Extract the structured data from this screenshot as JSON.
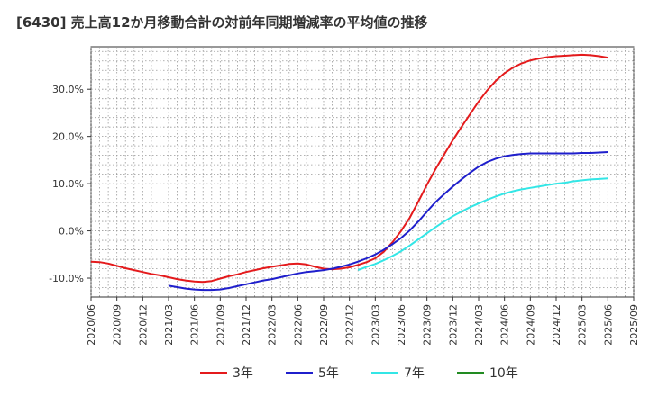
{
  "chart_data": {
    "type": "line",
    "title": "[6430]  売上高12か月移動合計の対前年同期増減率の平均値の推移",
    "xlabel": "",
    "ylabel": "",
    "ylim": [
      -14,
      39
    ],
    "yticks": [
      {
        "value": 30,
        "label": "30.0%"
      },
      {
        "value": 20,
        "label": "20.0%"
      },
      {
        "value": 10,
        "label": "10.0%"
      },
      {
        "value": 0,
        "label": "0.0%"
      },
      {
        "value": -10,
        "label": "-10.0%"
      }
    ],
    "xticks": [
      "2020/06",
      "2020/09",
      "2020/12",
      "2021/03",
      "2021/06",
      "2021/09",
      "2021/12",
      "2022/03",
      "2022/06",
      "2022/09",
      "2022/12",
      "2023/03",
      "2023/06",
      "2023/09",
      "2023/12",
      "2024/03",
      "2024/06",
      "2024/09",
      "2024/12",
      "2025/03",
      "2025/06",
      "2025/09"
    ],
    "grid": true,
    "legend_position": "bottom",
    "series": [
      {
        "name": "3年",
        "color": "#e41a1c",
        "points": [
          [
            "2020/06",
            -6.5
          ],
          [
            "2020/07",
            -6.6
          ],
          [
            "2020/08",
            -6.9
          ],
          [
            "2020/09",
            -7.4
          ],
          [
            "2020/10",
            -7.9
          ],
          [
            "2020/11",
            -8.3
          ],
          [
            "2020/12",
            -8.7
          ],
          [
            "2021/01",
            -9.1
          ],
          [
            "2021/02",
            -9.4
          ],
          [
            "2021/03",
            -9.8
          ],
          [
            "2021/04",
            -10.2
          ],
          [
            "2021/05",
            -10.5
          ],
          [
            "2021/06",
            -10.7
          ],
          [
            "2021/07",
            -10.8
          ],
          [
            "2021/08",
            -10.6
          ],
          [
            "2021/09",
            -10.1
          ],
          [
            "2021/10",
            -9.6
          ],
          [
            "2021/11",
            -9.2
          ],
          [
            "2021/12",
            -8.7
          ],
          [
            "2022/01",
            -8.3
          ],
          [
            "2022/02",
            -7.9
          ],
          [
            "2022/03",
            -7.6
          ],
          [
            "2022/04",
            -7.3
          ],
          [
            "2022/05",
            -7.0
          ],
          [
            "2022/06",
            -6.9
          ],
          [
            "2022/07",
            -7.1
          ],
          [
            "2022/08",
            -7.6
          ],
          [
            "2022/09",
            -8.0
          ],
          [
            "2022/10",
            -8.1
          ],
          [
            "2022/11",
            -8.0
          ],
          [
            "2022/12",
            -7.7
          ],
          [
            "2023/01",
            -7.2
          ],
          [
            "2023/02",
            -6.6
          ],
          [
            "2023/03",
            -5.8
          ],
          [
            "2023/04",
            -4.4
          ],
          [
            "2023/05",
            -2.4
          ],
          [
            "2023/06",
            0.0
          ],
          [
            "2023/07",
            2.8
          ],
          [
            "2023/08",
            6.2
          ],
          [
            "2023/09",
            9.8
          ],
          [
            "2023/10",
            13.1
          ],
          [
            "2023/11",
            16.2
          ],
          [
            "2023/12",
            19.2
          ],
          [
            "2024/01",
            22.0
          ],
          [
            "2024/02",
            24.7
          ],
          [
            "2024/03",
            27.4
          ],
          [
            "2024/04",
            29.8
          ],
          [
            "2024/05",
            31.8
          ],
          [
            "2024/06",
            33.4
          ],
          [
            "2024/07",
            34.6
          ],
          [
            "2024/08",
            35.5
          ],
          [
            "2024/09",
            36.1
          ],
          [
            "2024/10",
            36.5
          ],
          [
            "2024/11",
            36.8
          ],
          [
            "2024/12",
            37.0
          ],
          [
            "2025/01",
            37.1
          ],
          [
            "2025/02",
            37.2
          ],
          [
            "2025/03",
            37.3
          ],
          [
            "2025/04",
            37.2
          ],
          [
            "2025/05",
            37.0
          ],
          [
            "2025/06",
            36.7
          ]
        ]
      },
      {
        "name": "5年",
        "color": "#1f1fcc",
        "points": [
          [
            "2021/03",
            -11.6
          ],
          [
            "2021/04",
            -11.9
          ],
          [
            "2021/05",
            -12.2
          ],
          [
            "2021/06",
            -12.4
          ],
          [
            "2021/07",
            -12.5
          ],
          [
            "2021/08",
            -12.5
          ],
          [
            "2021/09",
            -12.4
          ],
          [
            "2021/10",
            -12.1
          ],
          [
            "2021/11",
            -11.7
          ],
          [
            "2021/12",
            -11.3
          ],
          [
            "2022/01",
            -10.9
          ],
          [
            "2022/02",
            -10.5
          ],
          [
            "2022/03",
            -10.2
          ],
          [
            "2022/04",
            -9.8
          ],
          [
            "2022/05",
            -9.4
          ],
          [
            "2022/06",
            -9.0
          ],
          [
            "2022/07",
            -8.7
          ],
          [
            "2022/08",
            -8.5
          ],
          [
            "2022/09",
            -8.3
          ],
          [
            "2022/10",
            -8.0
          ],
          [
            "2022/11",
            -7.6
          ],
          [
            "2022/12",
            -7.1
          ],
          [
            "2023/01",
            -6.5
          ],
          [
            "2023/02",
            -5.8
          ],
          [
            "2023/03",
            -5.0
          ],
          [
            "2023/04",
            -4.0
          ],
          [
            "2023/05",
            -2.8
          ],
          [
            "2023/06",
            -1.5
          ],
          [
            "2023/07",
            0.1
          ],
          [
            "2023/08",
            2.0
          ],
          [
            "2023/09",
            4.1
          ],
          [
            "2023/10",
            6.1
          ],
          [
            "2023/11",
            7.8
          ],
          [
            "2023/12",
            9.4
          ],
          [
            "2024/01",
            10.9
          ],
          [
            "2024/02",
            12.3
          ],
          [
            "2024/03",
            13.6
          ],
          [
            "2024/04",
            14.6
          ],
          [
            "2024/05",
            15.3
          ],
          [
            "2024/06",
            15.8
          ],
          [
            "2024/07",
            16.1
          ],
          [
            "2024/08",
            16.3
          ],
          [
            "2024/09",
            16.4
          ],
          [
            "2024/10",
            16.4
          ],
          [
            "2024/11",
            16.4
          ],
          [
            "2024/12",
            16.4
          ],
          [
            "2025/01",
            16.4
          ],
          [
            "2025/02",
            16.4
          ],
          [
            "2025/03",
            16.5
          ],
          [
            "2025/04",
            16.5
          ],
          [
            "2025/05",
            16.6
          ],
          [
            "2025/06",
            16.7
          ]
        ]
      },
      {
        "name": "7年",
        "color": "#33e6e6",
        "points": [
          [
            "2023/01",
            -8.3
          ],
          [
            "2023/02",
            -7.6
          ],
          [
            "2023/03",
            -7.0
          ],
          [
            "2023/04",
            -6.2
          ],
          [
            "2023/05",
            -5.3
          ],
          [
            "2023/06",
            -4.3
          ],
          [
            "2023/07",
            -3.1
          ],
          [
            "2023/08",
            -1.8
          ],
          [
            "2023/09",
            -0.5
          ],
          [
            "2023/10",
            0.8
          ],
          [
            "2023/11",
            2.0
          ],
          [
            "2023/12",
            3.1
          ],
          [
            "2024/01",
            4.1
          ],
          [
            "2024/02",
            5.0
          ],
          [
            "2024/03",
            5.8
          ],
          [
            "2024/04",
            6.6
          ],
          [
            "2024/05",
            7.3
          ],
          [
            "2024/06",
            7.9
          ],
          [
            "2024/07",
            8.4
          ],
          [
            "2024/08",
            8.8
          ],
          [
            "2024/09",
            9.1
          ],
          [
            "2024/10",
            9.4
          ],
          [
            "2024/11",
            9.7
          ],
          [
            "2024/12",
            10.0
          ],
          [
            "2025/01",
            10.2
          ],
          [
            "2025/02",
            10.5
          ],
          [
            "2025/03",
            10.7
          ],
          [
            "2025/04",
            10.9
          ],
          [
            "2025/05",
            11.0
          ],
          [
            "2025/06",
            11.1
          ]
        ]
      },
      {
        "name": "10年",
        "color": "#228b22",
        "points": []
      }
    ]
  }
}
